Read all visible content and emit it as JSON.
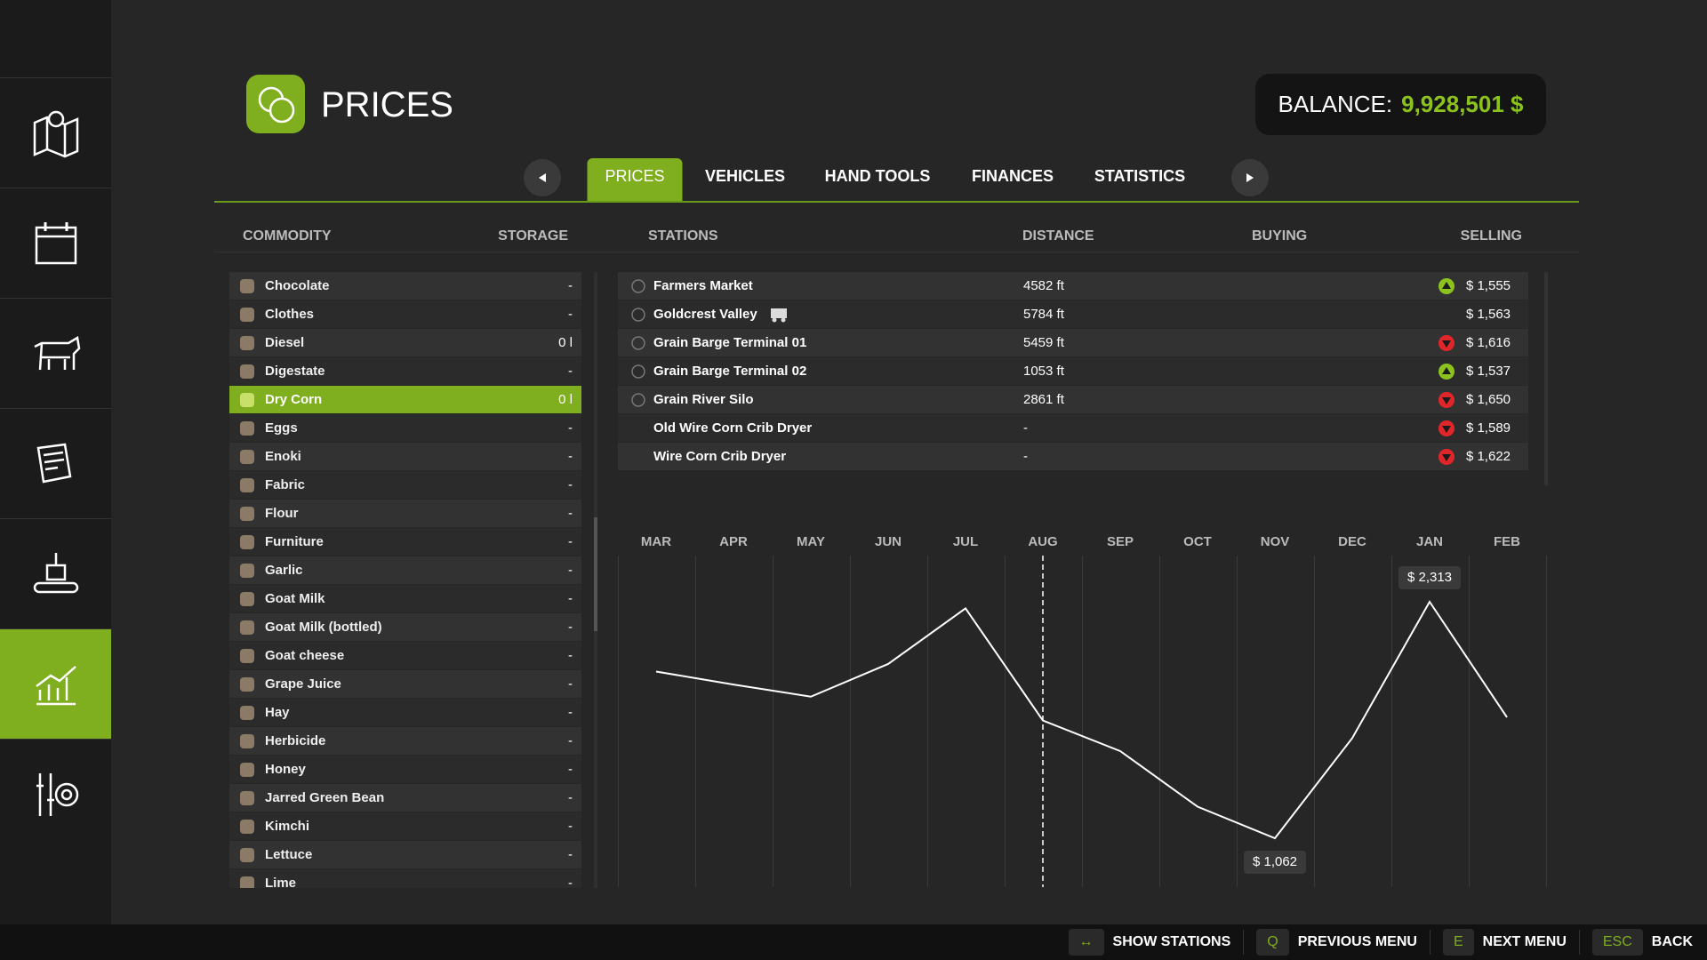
{
  "header": {
    "title": "PRICES",
    "balance_label": "BALANCE:",
    "balance_value": "9,928,501 $"
  },
  "tabs": [
    "PRICES",
    "VEHICLES",
    "HAND TOOLS",
    "FINANCES",
    "STATISTICS"
  ],
  "active_tab": 0,
  "columns": {
    "commodity": "COMMODITY",
    "storage": "STORAGE",
    "stations": "STATIONS",
    "distance": "DISTANCE",
    "buying": "BUYING",
    "selling": "SELLING"
  },
  "commodities": [
    {
      "name": "Chocolate",
      "storage": "-"
    },
    {
      "name": "Clothes",
      "storage": "-"
    },
    {
      "name": "Diesel",
      "storage": "0 l"
    },
    {
      "name": "Digestate",
      "storage": "-"
    },
    {
      "name": "Dry Corn",
      "storage": "0 l"
    },
    {
      "name": "Eggs",
      "storage": "-"
    },
    {
      "name": "Enoki",
      "storage": "-"
    },
    {
      "name": "Fabric",
      "storage": "-"
    },
    {
      "name": "Flour",
      "storage": "-"
    },
    {
      "name": "Furniture",
      "storage": "-"
    },
    {
      "name": "Garlic",
      "storage": "-"
    },
    {
      "name": "Goat Milk",
      "storage": "-"
    },
    {
      "name": "Goat Milk (bottled)",
      "storage": "-"
    },
    {
      "name": "Goat cheese",
      "storage": "-"
    },
    {
      "name": "Grape Juice",
      "storage": "-"
    },
    {
      "name": "Hay",
      "storage": "-"
    },
    {
      "name": "Herbicide",
      "storage": "-"
    },
    {
      "name": "Honey",
      "storage": "-"
    },
    {
      "name": "Jarred Green Bean",
      "storage": "-"
    },
    {
      "name": "Kimchi",
      "storage": "-"
    },
    {
      "name": "Lettuce",
      "storage": "-"
    },
    {
      "name": "Lime",
      "storage": "-"
    }
  ],
  "selected_commodity": 4,
  "stations": [
    {
      "name": "Farmers Market",
      "distance": "4582 ft",
      "trend": "up",
      "selling": "$ 1,555",
      "rail": false,
      "hidden": false
    },
    {
      "name": "Goldcrest Valley",
      "distance": "5784 ft",
      "trend": null,
      "selling": "$ 1,563",
      "rail": true,
      "hidden": false
    },
    {
      "name": "Grain Barge Terminal 01",
      "distance": "5459 ft",
      "trend": "down",
      "selling": "$ 1,616",
      "rail": false,
      "hidden": false
    },
    {
      "name": "Grain Barge Terminal 02",
      "distance": "1053 ft",
      "trend": "up",
      "selling": "$ 1,537",
      "rail": false,
      "hidden": false
    },
    {
      "name": "Grain River Silo",
      "distance": "2861 ft",
      "trend": "down",
      "selling": "$ 1,650",
      "rail": false,
      "hidden": false
    },
    {
      "name": "Old Wire Corn Crib Dryer",
      "distance": "-",
      "trend": "down",
      "selling": "$ 1,589",
      "rail": false,
      "hidden": true
    },
    {
      "name": "Wire Corn Crib Dryer",
      "distance": "-",
      "trend": "down",
      "selling": "$ 1,622",
      "rail": false,
      "hidden": true
    }
  ],
  "chart_data": {
    "type": "line",
    "categories": [
      "MAR",
      "APR",
      "MAY",
      "JUN",
      "JUL",
      "AUG",
      "SEP",
      "OCT",
      "NOV",
      "DEC",
      "JAN",
      "FEB"
    ],
    "values": [
      1944,
      1875,
      1811,
      1984,
      2278,
      1685,
      1523,
      1229,
      1062,
      1592,
      2313,
      1702
    ],
    "value_labels": [
      null,
      null,
      null,
      null,
      null,
      null,
      null,
      null,
      "$ 1,062",
      null,
      "$ 2,313",
      null
    ],
    "color": "#ffffff"
  },
  "footer": [
    {
      "key": "↔",
      "label": "SHOW STATIONS"
    },
    {
      "key": "Q",
      "label": "PREVIOUS MENU"
    },
    {
      "key": "E",
      "label": "NEXT MENU"
    },
    {
      "key": "ESC",
      "label": "BACK"
    }
  ]
}
